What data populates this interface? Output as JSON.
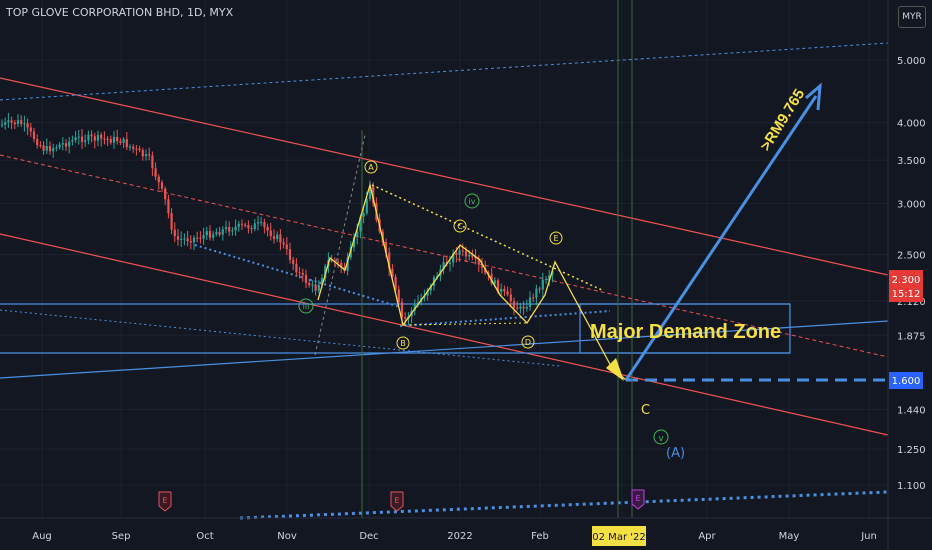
{
  "header": {
    "title": "TOP GLOVE CORPORATION BHD, 1D, MYX",
    "currency": "MYR"
  },
  "colors": {
    "background": "#131722",
    "up_candle": "#26a69a",
    "down_candle": "#ef5350",
    "channel_red": "#ef5350",
    "channel_blue": "#4a90e2",
    "annotation_yellow": "#f5e043",
    "arrow_blue": "#4a90e2",
    "price_tag_red": "#e53935",
    "price_tag_blue": "#2962ff"
  },
  "chart_data": {
    "type": "candlestick",
    "title": "TOP GLOVE CORPORATION BHD, 1D, MYX",
    "xlabel": "",
    "ylabel": "",
    "y_scale": "log",
    "x_tick_labels": [
      "Aug",
      "Sep",
      "Oct",
      "Nov",
      "Dec",
      "2022",
      "Feb",
      "Mar",
      "Apr",
      "May",
      "Jun"
    ],
    "y_tick_labels": [
      "5.000",
      "4.000",
      "3.500",
      "3.000",
      "2.500",
      "2.120",
      "1.875",
      "1.440",
      "1.250",
      "1.100"
    ],
    "y_tick_values": [
      5.0,
      4.0,
      3.5,
      3.0,
      2.5,
      2.12,
      1.875,
      1.44,
      1.25,
      1.1
    ],
    "current_price": {
      "label": "2.300",
      "countdown": "15:12"
    },
    "target_price": {
      "label": "1.600"
    },
    "date_marker": "02 Mar '22",
    "annotations": {
      "demand_zone": "Major Demand Zone",
      "target_text": ">RM9.765",
      "wave_c": "C",
      "wave_v": "v",
      "wave_a_big": "(A)",
      "wave_labels": [
        "A",
        "B",
        "C",
        "D",
        "E"
      ],
      "roman_labels": [
        "iii",
        "iv"
      ],
      "event_flags": [
        "E",
        "E",
        "E"
      ]
    }
  }
}
